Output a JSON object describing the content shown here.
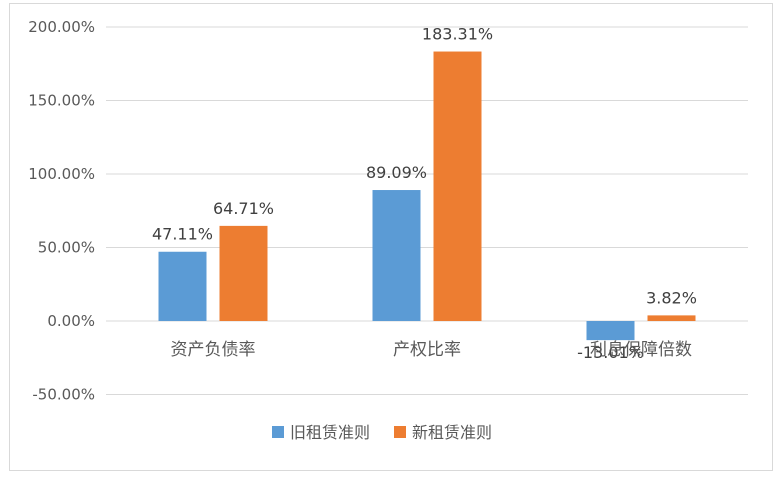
{
  "chart_data": {
    "type": "bar",
    "categories": [
      "资产负债率",
      "产权比率",
      "利息保障倍数"
    ],
    "series": [
      {
        "name": "旧租赁准则",
        "color": "#5b9bd5",
        "values": [
          47.11,
          89.09,
          -13.01
        ],
        "labels": [
          "47.11%",
          "89.09%",
          "-13.01%"
        ]
      },
      {
        "name": "新租赁准则",
        "color": "#ed7d31",
        "values": [
          64.71,
          183.31,
          3.82
        ],
        "labels": [
          "64.71%",
          "183.31%",
          "3.82%"
        ]
      }
    ],
    "ylim": [
      -50,
      200
    ],
    "yticks": [
      200,
      150,
      100,
      50,
      0,
      -50
    ],
    "ytick_labels": [
      "200.00%",
      "150.00%",
      "100.00%",
      "50.00%",
      "0.00%",
      "-50.00%"
    ],
    "grid": true,
    "legend_position": "bottom",
    "gridline_color": "#d9d9d9"
  }
}
